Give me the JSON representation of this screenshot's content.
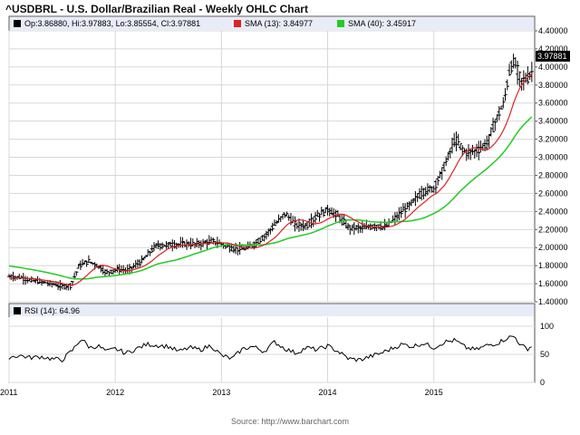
{
  "chart_data": [
    {
      "type": "line",
      "title": "^USDBRL - U.S. Dollar/Brazilian Real - Weekly OHLC Chart",
      "ohlc_legend": "Op:3.86880, Hi:3.97883, Lo:3.85554, Cl:3.97881",
      "last_price_label": "3.97881",
      "ylim": [
        1.4,
        4.4
      ],
      "yticks": [
        "4.40000",
        "4.20000",
        "4.00000",
        "3.80000",
        "3.60000",
        "3.40000",
        "3.20000",
        "3.00000",
        "2.80000",
        "2.60000",
        "2.40000",
        "2.20000",
        "2.00000",
        "1.80000",
        "1.60000",
        "1.40000"
      ],
      "xlim": [
        2011.0,
        2015.95
      ],
      "xticks": [
        {
          "label": "2011",
          "x": 2011.0
        },
        {
          "label": "2012",
          "x": 2012.0
        },
        {
          "label": "2013",
          "x": 2013.0
        },
        {
          "label": "2014",
          "x": 2014.0
        },
        {
          "label": "2015",
          "x": 2015.0
        }
      ],
      "grid": true,
      "price_keypoints": [
        [
          2011.0,
          1.68
        ],
        [
          2011.1,
          1.67
        ],
        [
          2011.2,
          1.64
        ],
        [
          2011.3,
          1.62
        ],
        [
          2011.4,
          1.6
        ],
        [
          2011.5,
          1.57
        ],
        [
          2011.58,
          1.58
        ],
        [
          2011.66,
          1.8
        ],
        [
          2011.75,
          1.85
        ],
        [
          2011.83,
          1.8
        ],
        [
          2011.92,
          1.72
        ],
        [
          2012.02,
          1.76
        ],
        [
          2012.12,
          1.75
        ],
        [
          2012.25,
          1.85
        ],
        [
          2012.38,
          2.02
        ],
        [
          2012.5,
          2.03
        ],
        [
          2012.65,
          2.04
        ],
        [
          2012.8,
          2.04
        ],
        [
          2012.9,
          2.07
        ],
        [
          2012.98,
          2.05
        ],
        [
          2013.1,
          1.99
        ],
        [
          2013.2,
          1.98
        ],
        [
          2013.3,
          2.03
        ],
        [
          2013.4,
          2.12
        ],
        [
          2013.5,
          2.25
        ],
        [
          2013.6,
          2.38
        ],
        [
          2013.7,
          2.25
        ],
        [
          2013.8,
          2.24
        ],
        [
          2013.9,
          2.35
        ],
        [
          2014.0,
          2.42
        ],
        [
          2014.1,
          2.35
        ],
        [
          2014.2,
          2.22
        ],
        [
          2014.35,
          2.22
        ],
        [
          2014.45,
          2.24
        ],
        [
          2014.55,
          2.23
        ],
        [
          2014.65,
          2.34
        ],
        [
          2014.75,
          2.45
        ],
        [
          2014.9,
          2.62
        ],
        [
          2015.0,
          2.66
        ],
        [
          2015.1,
          2.9
        ],
        [
          2015.2,
          3.2
        ],
        [
          2015.3,
          3.05
        ],
        [
          2015.4,
          3.07
        ],
        [
          2015.5,
          3.15
        ],
        [
          2015.58,
          3.4
        ],
        [
          2015.66,
          3.6
        ],
        [
          2015.72,
          4.0
        ],
        [
          2015.76,
          4.05
        ],
        [
          2015.82,
          3.85
        ],
        [
          2015.88,
          3.87
        ],
        [
          2015.93,
          3.96
        ]
      ],
      "series": [
        {
          "name": "SMA (13): 3.84977",
          "color": "#dd2222",
          "period": 13
        },
        {
          "name": "SMA (40): 3.45917",
          "color": "#22cc22",
          "period": 40
        }
      ]
    },
    {
      "type": "line",
      "legend": "RSI (14): 64.96",
      "ylim": [
        0,
        100
      ],
      "yticks": [
        "100",
        "50",
        "0"
      ],
      "rsi_keypoints": [
        [
          2011.0,
          45
        ],
        [
          2011.1,
          48
        ],
        [
          2011.2,
          44
        ],
        [
          2011.3,
          46
        ],
        [
          2011.4,
          42
        ],
        [
          2011.5,
          40
        ],
        [
          2011.6,
          58
        ],
        [
          2011.68,
          78
        ],
        [
          2011.76,
          62
        ],
        [
          2011.84,
          65
        ],
        [
          2011.92,
          55
        ],
        [
          2012.0,
          60
        ],
        [
          2012.1,
          52
        ],
        [
          2012.2,
          60
        ],
        [
          2012.3,
          68
        ],
        [
          2012.4,
          66
        ],
        [
          2012.5,
          64
        ],
        [
          2012.6,
          55
        ],
        [
          2012.7,
          62
        ],
        [
          2012.8,
          58
        ],
        [
          2012.9,
          66
        ],
        [
          2013.0,
          48
        ],
        [
          2013.1,
          42
        ],
        [
          2013.2,
          60
        ],
        [
          2013.3,
          64
        ],
        [
          2013.4,
          55
        ],
        [
          2013.5,
          72
        ],
        [
          2013.6,
          60
        ],
        [
          2013.7,
          52
        ],
        [
          2013.8,
          62
        ],
        [
          2013.9,
          58
        ],
        [
          2014.0,
          65
        ],
        [
          2014.1,
          55
        ],
        [
          2014.2,
          42
        ],
        [
          2014.3,
          40
        ],
        [
          2014.4,
          46
        ],
        [
          2014.5,
          52
        ],
        [
          2014.6,
          60
        ],
        [
          2014.7,
          68
        ],
        [
          2014.8,
          64
        ],
        [
          2014.9,
          70
        ],
        [
          2015.0,
          62
        ],
        [
          2015.1,
          72
        ],
        [
          2015.2,
          75
        ],
        [
          2015.3,
          62
        ],
        [
          2015.4,
          58
        ],
        [
          2015.5,
          66
        ],
        [
          2015.6,
          70
        ],
        [
          2015.7,
          80
        ],
        [
          2015.76,
          82
        ],
        [
          2015.82,
          66
        ],
        [
          2015.88,
          60
        ],
        [
          2015.93,
          65
        ]
      ]
    }
  ],
  "source_note": "Source: http://www.barchart.com"
}
